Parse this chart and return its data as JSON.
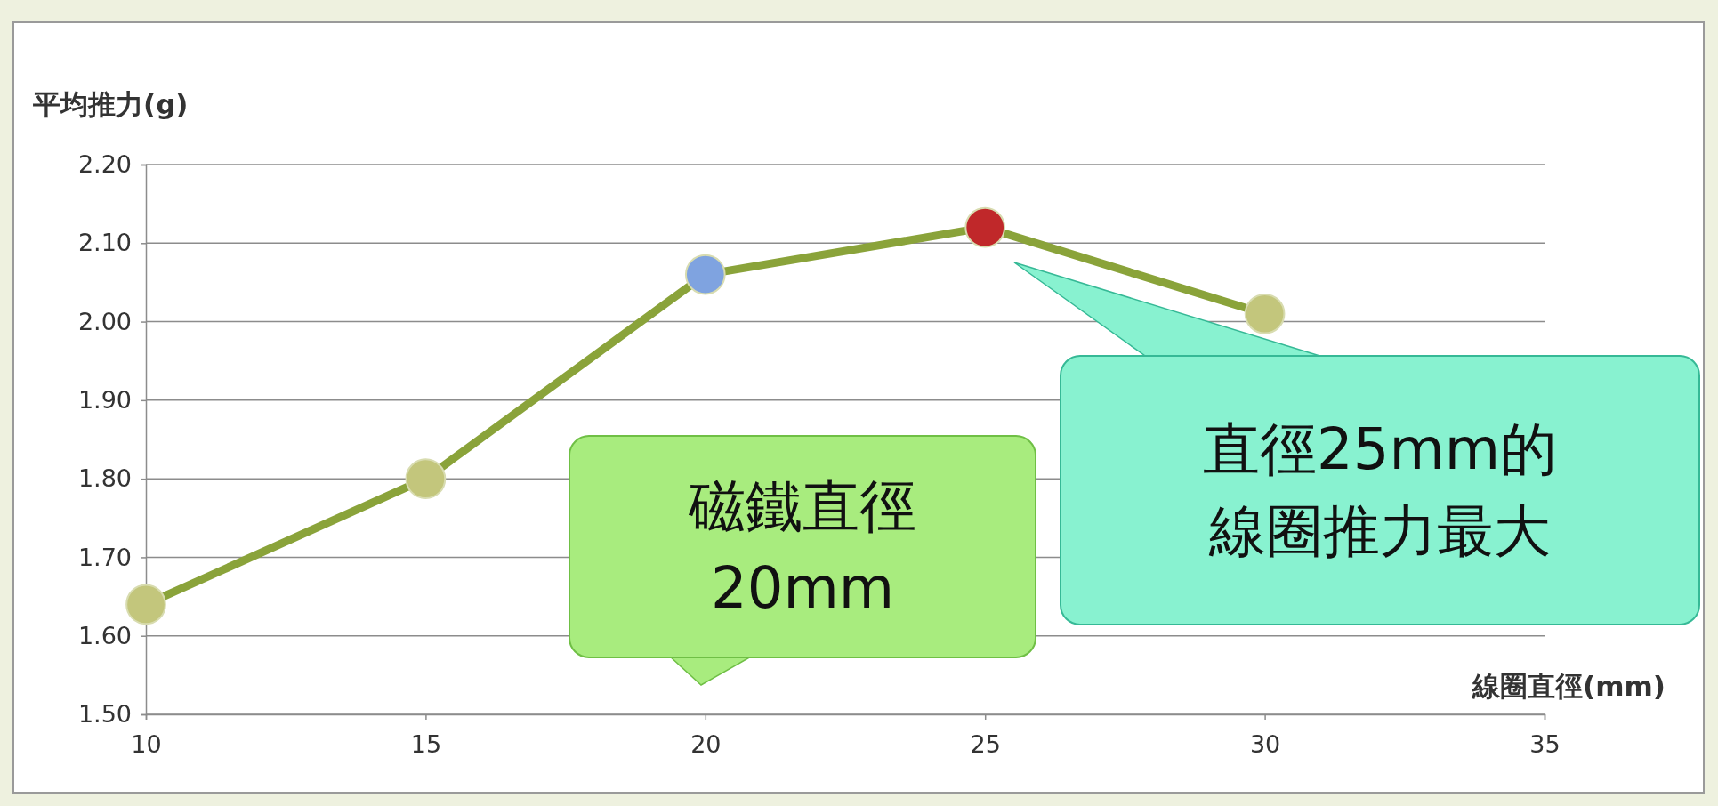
{
  "chart_data": {
    "type": "line",
    "xlabel": "線圈直徑(mm)",
    "ylabel": "平均推力(g)",
    "x": [
      10,
      15,
      20,
      25,
      30
    ],
    "series": [
      {
        "color": "#8aa33a",
        "colors": [
          "#c3c67c",
          "#c3c67c",
          "#7fa3e0",
          "#c0282a",
          "#c3c67c"
        ],
        "values": [
          1.64,
          1.8,
          2.06,
          2.12,
          2.01
        ]
      }
    ],
    "xlim": [
      10,
      35
    ],
    "xticks": [
      10,
      15,
      20,
      25,
      30,
      35
    ],
    "ylim": [
      1.5,
      2.2
    ],
    "yticks": [
      {
        "value": 1.5,
        "label": "1.50"
      },
      {
        "value": 1.6,
        "label": "1.60"
      },
      {
        "value": 1.7,
        "label": "1.70"
      },
      {
        "value": 1.8,
        "label": "1.80"
      },
      {
        "value": 1.9,
        "label": "1.90"
      },
      {
        "value": 2.0,
        "label": "2.00"
      },
      {
        "value": 2.1,
        "label": "2.10"
      },
      {
        "value": 2.2,
        "label": "2.20"
      }
    ],
    "grid": "y",
    "marker": "circle",
    "line_style": "solid",
    "annotations": [
      "磁鐵直徑20mm",
      "直徑25mm的線圈推力最大"
    ]
  }
}
